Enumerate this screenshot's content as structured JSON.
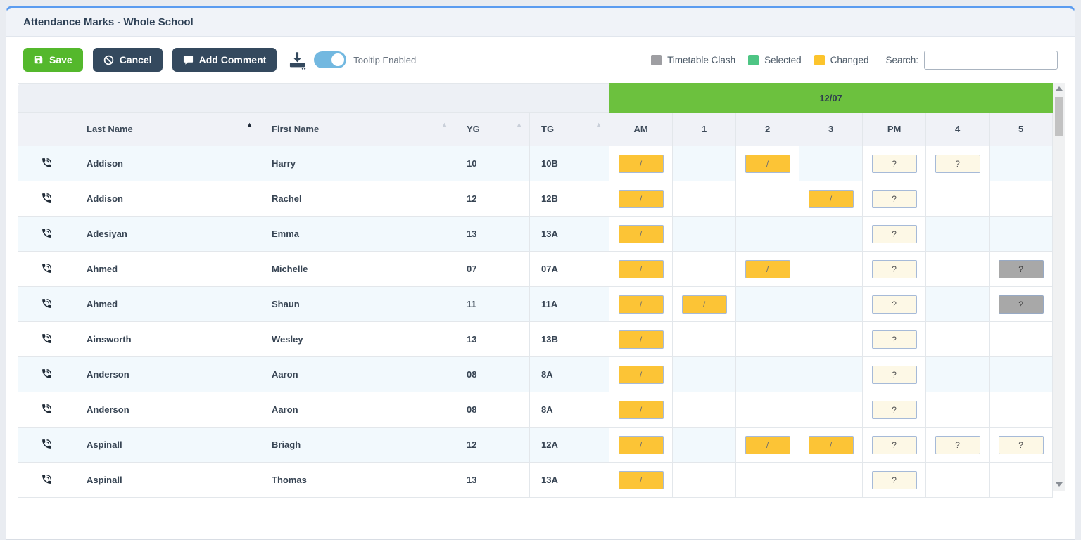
{
  "page": {
    "title": "Attendance Marks - Whole School"
  },
  "toolbar": {
    "save_label": "Save",
    "cancel_label": "Cancel",
    "add_comment_label": "Add Comment",
    "tooltip_toggle_label": "Tooltip Enabled",
    "tooltip_enabled": true
  },
  "legend": {
    "items": [
      {
        "label": "Timetable Clash",
        "color": "#9e9ea2"
      },
      {
        "label": "Selected",
        "color": "#4ec584"
      },
      {
        "label": "Changed",
        "color": "#fcc42c"
      }
    ],
    "search_label": "Search:",
    "search_value": ""
  },
  "colors": {
    "accent_blue": "#5b9cf0",
    "save_green": "#54b82c",
    "button_dark": "#34495e",
    "date_header_green": "#6cc13e",
    "mark_changed_bg": "#fcc436",
    "mark_unset_bg": "#fdf8e6",
    "mark_clash_bg": "#a8a8a8"
  },
  "marks": {
    "symbols": {
      "changed": "/",
      "unset": "?",
      "clash": "?"
    }
  },
  "table": {
    "date_header": "12/07",
    "columns": [
      "Last Name",
      "First Name",
      "YG",
      "TG"
    ],
    "mark_columns": [
      "AM",
      "1",
      "2",
      "3",
      "PM",
      "4",
      "5"
    ],
    "sort": {
      "column": "Last Name",
      "direction": "asc"
    },
    "rows": [
      {
        "last_name": "Addison",
        "first_name": "Harry",
        "yg": "10",
        "tg": "10B",
        "marks": [
          "changed",
          "",
          "changed",
          "",
          "unset",
          "unset",
          ""
        ]
      },
      {
        "last_name": "Addison",
        "first_name": "Rachel",
        "yg": "12",
        "tg": "12B",
        "marks": [
          "changed",
          "",
          "",
          "changed",
          "unset",
          "",
          ""
        ]
      },
      {
        "last_name": "Adesiyan",
        "first_name": "Emma",
        "yg": "13",
        "tg": "13A",
        "marks": [
          "changed",
          "",
          "",
          "",
          "unset",
          "",
          ""
        ]
      },
      {
        "last_name": "Ahmed",
        "first_name": "Michelle",
        "yg": "07",
        "tg": "07A",
        "marks": [
          "changed",
          "",
          "changed",
          "",
          "unset",
          "",
          "clash"
        ]
      },
      {
        "last_name": "Ahmed",
        "first_name": "Shaun",
        "yg": "11",
        "tg": "11A",
        "marks": [
          "changed",
          "changed",
          "",
          "",
          "unset",
          "",
          "clash"
        ]
      },
      {
        "last_name": "Ainsworth",
        "first_name": "Wesley",
        "yg": "13",
        "tg": "13B",
        "marks": [
          "changed",
          "",
          "",
          "",
          "unset",
          "",
          ""
        ]
      },
      {
        "last_name": "Anderson",
        "first_name": "Aaron",
        "yg": "08",
        "tg": "8A",
        "marks": [
          "changed",
          "",
          "",
          "",
          "unset",
          "",
          ""
        ]
      },
      {
        "last_name": "Anderson",
        "first_name": "Aaron",
        "yg": "08",
        "tg": "8A",
        "marks": [
          "changed",
          "",
          "",
          "",
          "unset",
          "",
          ""
        ]
      },
      {
        "last_name": "Aspinall",
        "first_name": "Briagh",
        "yg": "12",
        "tg": "12A",
        "marks": [
          "changed",
          "",
          "changed",
          "changed",
          "unset",
          "unset",
          "unset"
        ]
      },
      {
        "last_name": "Aspinall",
        "first_name": "Thomas",
        "yg": "13",
        "tg": "13A",
        "marks": [
          "changed",
          "",
          "",
          "",
          "unset",
          "",
          ""
        ]
      }
    ]
  }
}
